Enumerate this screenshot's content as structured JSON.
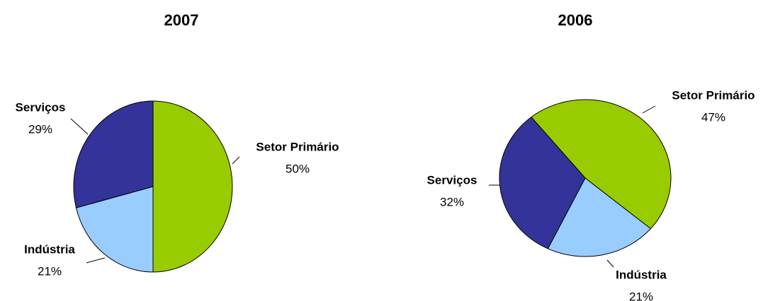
{
  "chart_data": [
    {
      "type": "pie",
      "title": "2007",
      "categories": [
        "Setor Primário",
        "Indústria",
        "Serviços"
      ],
      "values": [
        50,
        21,
        29
      ],
      "value_labels": [
        "50%",
        "21%",
        "29%"
      ],
      "colors": [
        "#99cc00",
        "#99ccff",
        "#333399"
      ]
    },
    {
      "type": "pie",
      "title": "2006",
      "categories": [
        "Setor Primário",
        "Indústria",
        "Serviços"
      ],
      "values": [
        47,
        21,
        32
      ],
      "value_labels": [
        "47%",
        "21%",
        "32%"
      ],
      "colors": [
        "#99cc00",
        "#99ccff",
        "#333399"
      ]
    }
  ]
}
